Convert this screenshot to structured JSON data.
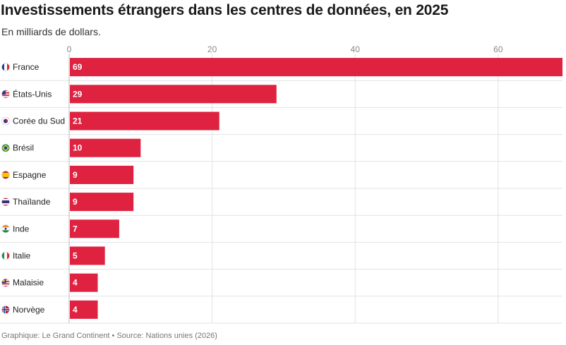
{
  "header": {
    "title": "Investissements étrangers dans les centres de données, en 2025",
    "subtitle": "En milliards de dollars."
  },
  "footer": {
    "source": "Graphique: Le Grand Continent • Source: Nations unies (2026)"
  },
  "chart_data": {
    "type": "bar",
    "orientation": "horizontal",
    "title": "Investissements étrangers dans les centres de données, en 2025",
    "subtitle": "En milliards de dollars.",
    "categories": [
      "France",
      "États-Unis",
      "Corée du Sud",
      "Brésil",
      "Espagne",
      "Thaïlande",
      "Inde",
      "Italie",
      "Malaisie",
      "Norvège"
    ],
    "values": [
      69,
      29,
      21,
      10,
      9,
      9,
      7,
      5,
      4,
      4
    ],
    "flag_icons": [
      "flag-france-icon",
      "flag-usa-icon",
      "flag-south-korea-icon",
      "flag-brazil-icon",
      "flag-spain-icon",
      "flag-thailand-icon",
      "flag-india-icon",
      "flag-italy-icon",
      "flag-malaysia-icon",
      "flag-norway-icon"
    ],
    "x_ticks": [
      0,
      20,
      40,
      60
    ],
    "xlim": [
      0,
      69
    ],
    "axis_position": "top",
    "grid": true,
    "bar_color": "#de2240"
  }
}
